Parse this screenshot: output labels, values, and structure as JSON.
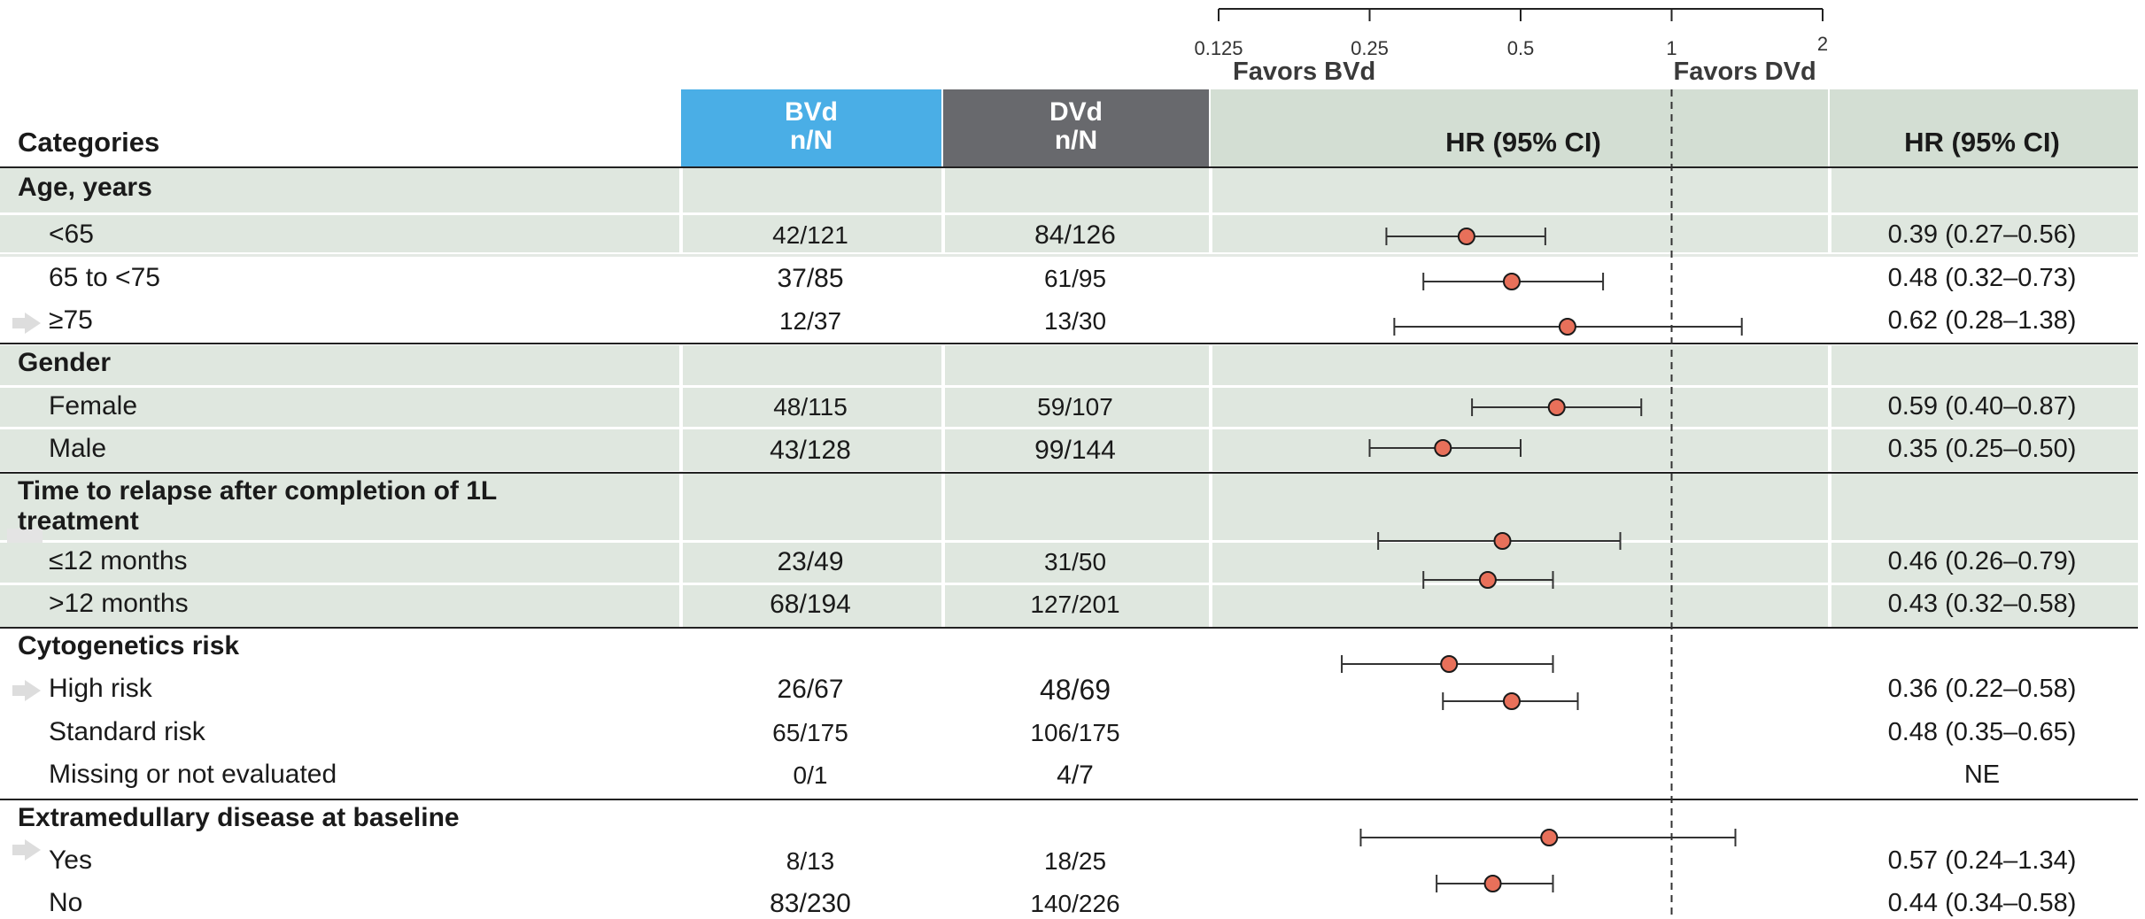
{
  "axis": {
    "ticks": [
      {
        "value": 0.125,
        "label": "0.125"
      },
      {
        "value": 0.25,
        "label": "0.25"
      },
      {
        "value": 0.5,
        "label": "0.5"
      },
      {
        "value": 1,
        "label": "1"
      },
      {
        "value": 2,
        "label": "2"
      }
    ],
    "favors_left": "Favors BVd",
    "favors_right": "Favors DVd"
  },
  "header": {
    "categories": "Categories",
    "bvd_line1": "BVd",
    "bvd_line2": "n/N",
    "dvd_line1": "DVd",
    "dvd_line2": "n/N",
    "hr_plot": "HR (95% CI)",
    "hr_text": "HR (95% CI)"
  },
  "colors": {
    "bvd_header": "#4aaee6",
    "dvd_header": "#68696d",
    "band": "#dfe7df",
    "point_fill": "#e8705a",
    "point_stroke": "#1a1a1a"
  },
  "chart_data": {
    "type": "forest",
    "xlabel": "HR (95% CI)",
    "x_scale": "log2",
    "xlim": [
      0.125,
      2
    ],
    "reference_line": 1,
    "groups": [
      {
        "name": "Age, years",
        "rows": [
          {
            "label": "<65",
            "bvd": "42/121",
            "dvd": "84/126",
            "hr": 0.39,
            "lo": 0.27,
            "hi": 0.56,
            "text": "0.39 (0.27–0.56)"
          },
          {
            "label": "65 to <75",
            "bvd": "37/85",
            "dvd": "61/95",
            "hr": 0.48,
            "lo": 0.32,
            "hi": 0.73,
            "text": "0.48 (0.32–0.73)"
          },
          {
            "label": "≥75",
            "bvd": "12/37",
            "dvd": "13/30",
            "hr": 0.62,
            "lo": 0.28,
            "hi": 1.38,
            "text": "0.62 (0.28–1.38)"
          }
        ]
      },
      {
        "name": "Gender",
        "rows": [
          {
            "label": "Female",
            "bvd": "48/115",
            "dvd": "59/107",
            "hr": 0.59,
            "lo": 0.4,
            "hi": 0.87,
            "text": "0.59 (0.40–0.87)"
          },
          {
            "label": "Male",
            "bvd": "43/128",
            "dvd": "99/144",
            "hr": 0.35,
            "lo": 0.25,
            "hi": 0.5,
            "text": "0.35 (0.25–0.50)"
          }
        ]
      },
      {
        "name": "Time to relapse after completion of 1L treatment",
        "rows": [
          {
            "label": "≤12 months",
            "bvd": "23/49",
            "dvd": "31/50",
            "hr": 0.46,
            "lo": 0.26,
            "hi": 0.79,
            "text": "0.46 (0.26–0.79)"
          },
          {
            "label": ">12 months",
            "bvd": "68/194",
            "dvd": "127/201",
            "hr": 0.43,
            "lo": 0.32,
            "hi": 0.58,
            "text": "0.43 (0.32–0.58)"
          }
        ]
      },
      {
        "name": "Cytogenetics risk",
        "rows": [
          {
            "label": "High risk",
            "bvd": "26/67",
            "dvd": "48/69",
            "hr": 0.36,
            "lo": 0.22,
            "hi": 0.58,
            "text": "0.36 (0.22–0.58)"
          },
          {
            "label": "Standard risk",
            "bvd": "65/175",
            "dvd": "106/175",
            "hr": 0.48,
            "lo": 0.35,
            "hi": 0.65,
            "text": "0.48 (0.35–0.65)"
          },
          {
            "label": "Missing or not evaluated",
            "bvd": "0/1",
            "dvd": "4/7",
            "hr": null,
            "lo": null,
            "hi": null,
            "text": "NE"
          }
        ]
      },
      {
        "name": "Extramedullary disease at baseline",
        "rows": [
          {
            "label": "Yes",
            "bvd": "8/13",
            "dvd": "18/25",
            "hr": 0.57,
            "lo": 0.24,
            "hi": 1.34,
            "text": "0.57 (0.24–1.34)"
          },
          {
            "label": "No",
            "bvd": "83/230",
            "dvd": "140/226",
            "hr": 0.44,
            "lo": 0.34,
            "hi": 0.58,
            "text": "0.44 (0.34–0.58)"
          }
        ]
      }
    ]
  }
}
